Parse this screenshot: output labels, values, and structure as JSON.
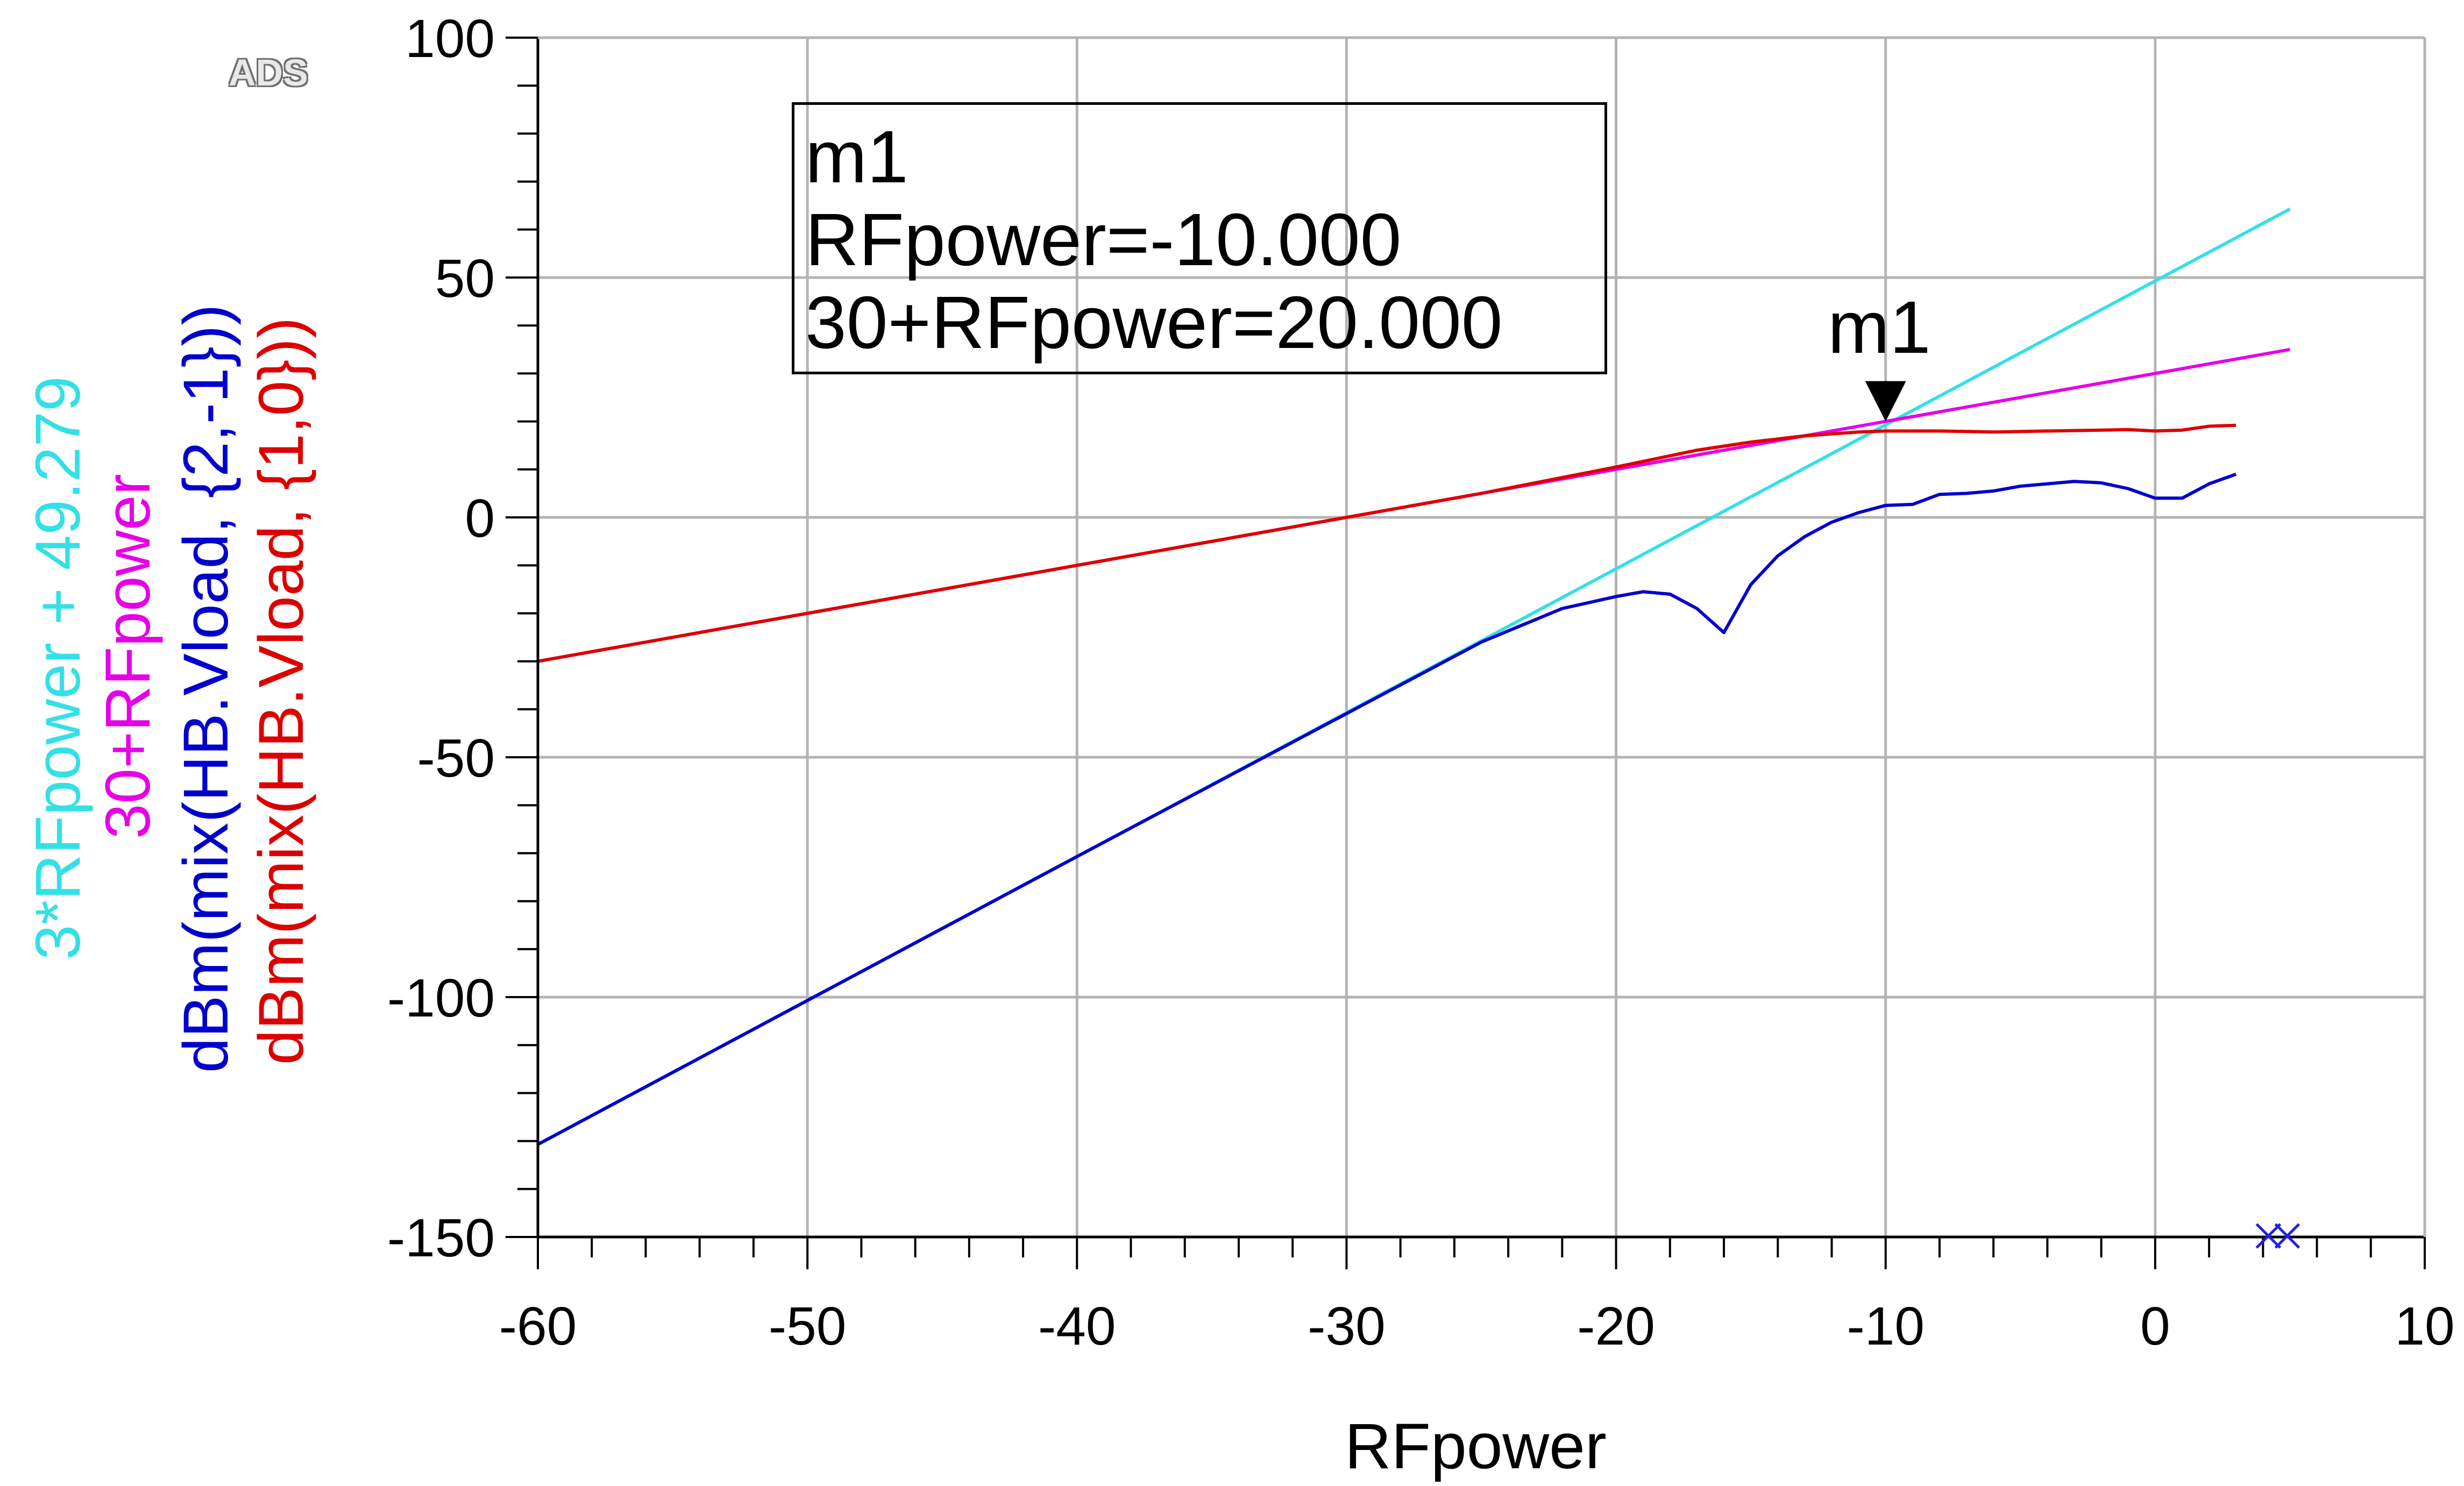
{
  "watermark": "ADS",
  "marker": {
    "name": "m1",
    "line1": "m1",
    "line2": "RFpower=-10.000",
    "line3": "30+RFpower=20.000"
  },
  "chart_data": {
    "type": "line",
    "xlabel": "RFpower",
    "ylabels": [
      {
        "text": "3*RFpower + 49.279",
        "color": "#33e0e6"
      },
      {
        "text": "30+RFpower",
        "color": "#e600e6"
      },
      {
        "text": "dBm(mix(HB.Vload, {2,-1}))",
        "color": "#0000cc"
      },
      {
        "text": "dBm(mix(HB.Vload, {1,0}))",
        "color": "#dd0000"
      }
    ],
    "xlim": [
      -60,
      10
    ],
    "ylim": [
      -150,
      100
    ],
    "xticks": [
      -60,
      -50,
      -40,
      -30,
      -20,
      -10,
      0,
      10
    ],
    "yticks": [
      -150,
      -100,
      -50,
      0,
      50,
      100
    ],
    "grid": true,
    "marker_point": {
      "x": -10,
      "y": 20
    },
    "series": [
      {
        "name": "3*RFpower + 49.279",
        "color": "#33e0e6",
        "x": [
          -60,
          5
        ],
        "y": [
          -130.721,
          64.279
        ]
      },
      {
        "name": "30+RFpower",
        "color": "#e600e6",
        "x": [
          -60,
          5
        ],
        "y": [
          -30,
          35
        ]
      },
      {
        "name": "dBm(mix(HB.Vload, {2,-1}))",
        "color": "#0000cc",
        "x": [
          -60,
          -50,
          -40,
          -30,
          -25,
          -22,
          -20,
          -19,
          -18,
          -17,
          -16,
          -15,
          -14,
          -13,
          -12,
          -11,
          -10,
          -9,
          -8,
          -7,
          -6,
          -5,
          -4,
          -3,
          -2,
          -1,
          0,
          1,
          2,
          3
        ],
        "y": [
          -130.7,
          -100.7,
          -70.7,
          -40.9,
          -26,
          -19,
          -16.5,
          -15.5,
          -16,
          -19,
          -24,
          -14,
          -8,
          -4,
          -1,
          1,
          2.5,
          2.7,
          4.8,
          5,
          5.5,
          6.5,
          7,
          7.5,
          7.2,
          6,
          4,
          4,
          7,
          9
        ]
      },
      {
        "name": "dBm(mix(HB.Vload, {1,0}))",
        "color": "#dd0000",
        "x": [
          -60,
          -50,
          -40,
          -30,
          -25,
          -20,
          -17,
          -15,
          -13,
          -11,
          -10,
          -8,
          -6,
          -4,
          -2,
          -1,
          0,
          1,
          2,
          3
        ],
        "y": [
          -30,
          -20,
          -10,
          0,
          5,
          10.5,
          14,
          15.7,
          17,
          17.8,
          18,
          18,
          17.8,
          18,
          18.2,
          18.3,
          18,
          18.2,
          19,
          19.2
        ]
      }
    ]
  }
}
